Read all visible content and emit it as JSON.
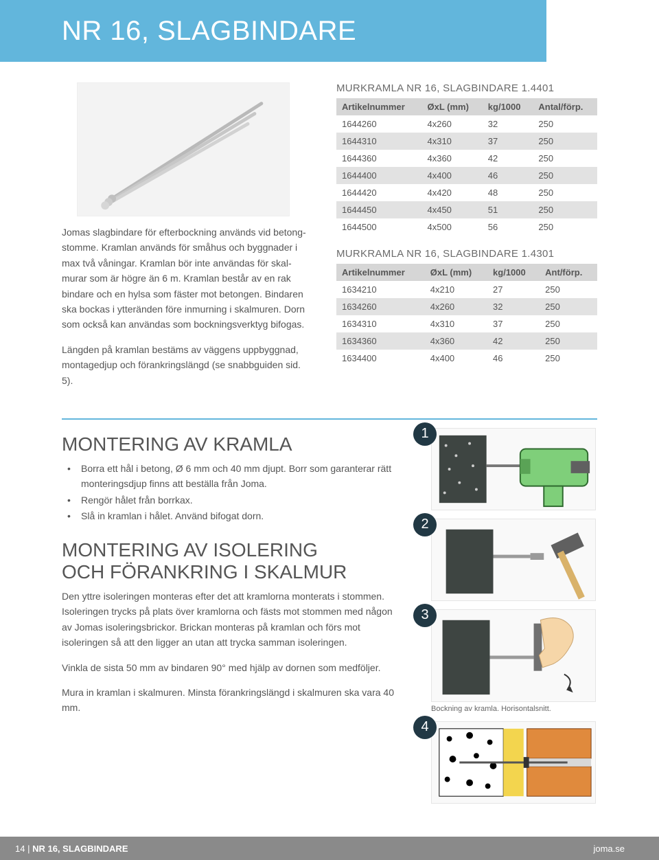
{
  "page": {
    "title": "NR 16, SLAGBINDARE",
    "banner_bg": "#62b6dc",
    "banner_text_color": "#ffffff"
  },
  "description": {
    "para1": "Jomas slagbindare för efterbockning används vid betong­stomme. Kramlan används för småhus och byggnader i max två våningar. Kramlan bör inte användas för skal­murar som är högre än 6 m. Kramlan består av en rak bindare och en hylsa som fäster mot betongen. Bindaren ska bockas i ytteränden före inmurning i skalmuren. Dorn som också kan användas som bockningsverktyg bifogas.",
    "para2": "Längden på kramlan bestäms av väggens uppbyggnad, montagedjup och förankringslängd (se snabbguiden sid. 5)."
  },
  "table1": {
    "title": "MURKRAMLA NR 16, SLAGBINDARE 1.4401",
    "columns": [
      "Artikelnummer",
      "ØxL (mm)",
      "kg/1000",
      "Antal/förp."
    ],
    "rows": [
      [
        "1644260",
        "4x260",
        "32",
        "250"
      ],
      [
        "1644310",
        "4x310",
        "37",
        "250"
      ],
      [
        "1644360",
        "4x360",
        "42",
        "250"
      ],
      [
        "1644400",
        "4x400",
        "46",
        "250"
      ],
      [
        "1644420",
        "4x420",
        "48",
        "250"
      ],
      [
        "1644450",
        "4x450",
        "51",
        "250"
      ],
      [
        "1644500",
        "4x500",
        "56",
        "250"
      ]
    ]
  },
  "table2": {
    "title": "MURKRAMLA NR 16, SLAGBINDARE 1.4301",
    "columns": [
      "Artikelnummer",
      "ØxL (mm)",
      "kg/1000",
      "Ant/förp."
    ],
    "rows": [
      [
        "1634210",
        "4x210",
        "27",
        "250"
      ],
      [
        "1634260",
        "4x260",
        "32",
        "250"
      ],
      [
        "1634310",
        "4x310",
        "37",
        "250"
      ],
      [
        "1634360",
        "4x360",
        "42",
        "250"
      ],
      [
        "1634400",
        "4x400",
        "46",
        "250"
      ]
    ]
  },
  "mounting": {
    "heading": "MONTERING AV KRAMLA",
    "bullets": [
      "Borra ett hål i betong, Ø 6 mm och 40 mm djupt. Borr som garanterar rätt monteringsdjup finns att beställa från Joma.",
      "Rengör hålet från borrkax.",
      "Slå in kramlan i hålet. Använd bifogat dorn."
    ]
  },
  "insulation": {
    "heading_line1": "MONTERING AV ISOLERING",
    "heading_line2": "OCH FÖRANKRING I SKALMUR",
    "para1": "Den yttre isoleringen monteras efter det att kramlorna monterats i stommen. Isoleringen trycks på plats över kramlorna och fästs mot stommen med någon av Jomas isoleringsbrickor. Brickan monteras på kramlan och förs mot isoleringen så att den ligger an utan att trycka samman isoleringen.",
    "para2": "Vinkla de sista 50 mm av bindaren 90° med hjälp av dornen som medföljer.",
    "para3": "Mura in kramlan i skalmuren. Minsta förankringslängd i skalmuren ska vara 40 mm."
  },
  "steps": {
    "labels": [
      "1",
      "2",
      "3",
      "4"
    ],
    "caption3": "Bockning av kramla. Horisontalsnitt.",
    "colors": {
      "badge_bg": "#213844",
      "drill_body": "#7fcf7a",
      "wall": "#3e4542",
      "hammer_head": "#606060",
      "hammer_handle": "#d9b26a",
      "hand": "#f6d6a8",
      "brick": "#e08a3d",
      "insulation": "#f3d54e",
      "concrete_spot": "#000000"
    }
  },
  "footer": {
    "page_number": "14 |",
    "title": "NR 16, SLAGBINDARE",
    "site": "joma.se",
    "bg": "#8a8a8a"
  }
}
